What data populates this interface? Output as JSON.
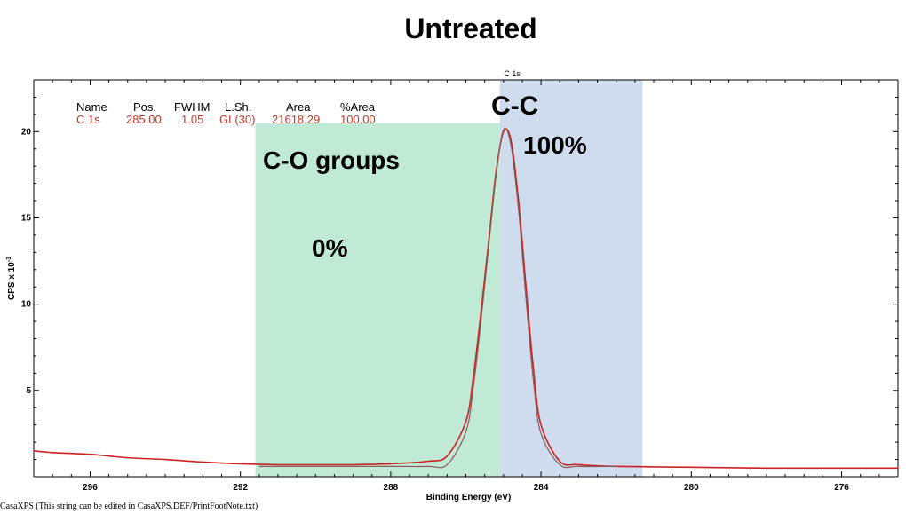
{
  "chart_data": {
    "type": "line",
    "title": "Untreated",
    "spectrum_label": "C 1s",
    "xlabel": "Binding Energy (eV)",
    "ylabel": "CPS x 10",
    "ylabel_exp": "-3",
    "xlim": [
      297.5,
      274.5
    ],
    "ylim": [
      0,
      23
    ],
    "x_reversed": true,
    "x_ticks": [
      296,
      292,
      288,
      284,
      280,
      276
    ],
    "x_tick_labels": [
      "296",
      "292",
      "288",
      "284",
      "280",
      "276"
    ],
    "y_ticks": [
      5,
      10,
      15,
      20
    ],
    "y_tick_labels": [
      "5",
      "10",
      "15",
      "20"
    ],
    "grid": false,
    "peak_table": {
      "headers": [
        "Name",
        "Pos.",
        "FWHM",
        "L.Sh.",
        "Area",
        "%Area"
      ],
      "rows": [
        [
          "C 1s",
          "285.00",
          "1.05",
          "GL(30)",
          "21618.29",
          "100.00"
        ]
      ]
    },
    "regions": [
      {
        "name": "C-O groups",
        "percent": "0%",
        "x_from": 291.6,
        "x_to": 285.1,
        "y_top": 20.5,
        "color": "#c0ead6"
      },
      {
        "name": "C-C",
        "percent": "100%",
        "x_from": 285.1,
        "x_to": 281.3,
        "y_top": 23.0,
        "color": "#cfdcee"
      }
    ],
    "series": [
      {
        "color": "#cc2222",
        "x": [
          297.5,
          297.0,
          296.0,
          295.0,
          294.0,
          293.0,
          292.0,
          291.0,
          290.0,
          289.0,
          288.0,
          287.0,
          286.5,
          286.0,
          285.8,
          285.6,
          285.4,
          285.2,
          285.0,
          284.8,
          284.6,
          284.4,
          284.2,
          284.0,
          283.5,
          283.0,
          282.0,
          280.0,
          278.0,
          276.0,
          274.5
        ],
        "y": [
          1.5,
          1.4,
          1.3,
          1.1,
          1.0,
          0.85,
          0.75,
          0.7,
          0.7,
          0.7,
          0.75,
          0.9,
          1.2,
          3.2,
          5.8,
          9.5,
          13.5,
          17.6,
          20.0,
          19.5,
          16.0,
          11.0,
          6.2,
          3.0,
          0.9,
          0.7,
          0.6,
          0.55,
          0.5,
          0.5,
          0.5
        ]
      },
      {
        "color": "#8a5a5a",
        "x": [
          291.5,
          290.0,
          288.0,
          287.0,
          286.5,
          286.0,
          285.8,
          285.6,
          285.4,
          285.2,
          285.0,
          284.8,
          284.6,
          284.4,
          284.2,
          284.0,
          283.5,
          283.0,
          282.0
        ],
        "y": [
          0.6,
          0.6,
          0.6,
          0.6,
          0.7,
          2.6,
          5.2,
          9.0,
          13.2,
          17.4,
          20.1,
          19.2,
          15.5,
          10.3,
          5.5,
          2.5,
          0.7,
          0.6,
          0.6
        ]
      }
    ]
  },
  "footer": "CasaXPS (This string can be edited in CasaXPS.DEF/PrintFootNote.txt)"
}
